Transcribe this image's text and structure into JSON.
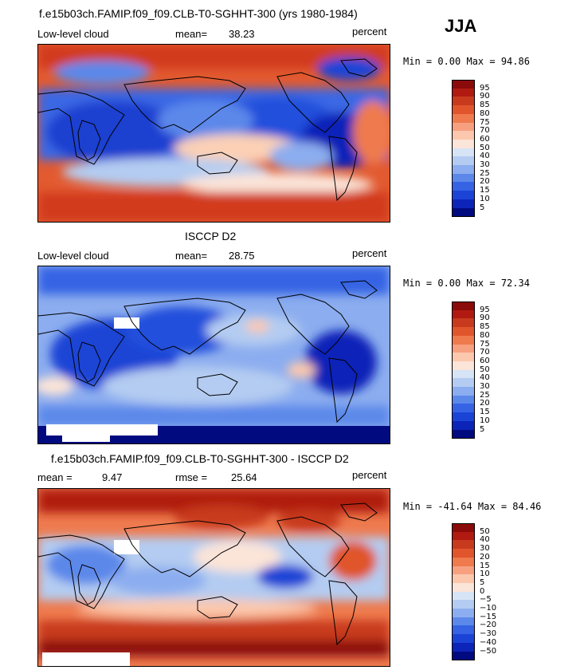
{
  "season": "JJA",
  "panels": [
    {
      "title": "f.e15b03ch.FAMIP.f09_f09.CLB-T0-SGHHT-300 (yrs 1980-1984)",
      "left_label": "Low-level cloud",
      "stat_label": "mean=",
      "stat_value": "38.23",
      "units": "percent",
      "minmax": "Min =    0.00 Max =  94.86",
      "colorbar": {
        "labels": [
          "95",
          "90",
          "85",
          "80",
          "75",
          "70",
          "60",
          "50",
          "40",
          "30",
          "25",
          "20",
          "15",
          "10",
          "5"
        ],
        "colors": [
          "#8b0a0a",
          "#b01a10",
          "#c83a1e",
          "#e0552c",
          "#ee7a4e",
          "#f7a080",
          "#fbc8ad",
          "#fbe4d8",
          "#d6e4f6",
          "#b4ccf1",
          "#8cadef",
          "#5c88ea",
          "#3563e4",
          "#1b44d6",
          "#0d24b8",
          "#020a80"
        ]
      }
    },
    {
      "title": "ISCCP D2",
      "left_label": "Low-level cloud",
      "stat_label": "mean=",
      "stat_value": "28.75",
      "units": "percent",
      "minmax": "Min =    0.00 Max =  72.34",
      "colorbar": {
        "labels": [
          "95",
          "90",
          "85",
          "80",
          "75",
          "70",
          "60",
          "50",
          "40",
          "30",
          "25",
          "20",
          "15",
          "10",
          "5"
        ],
        "colors": [
          "#8b0a0a",
          "#b01a10",
          "#c83a1e",
          "#e0552c",
          "#ee7a4e",
          "#f7a080",
          "#fbc8ad",
          "#fbe4d8",
          "#d6e4f6",
          "#b4ccf1",
          "#8cadef",
          "#5c88ea",
          "#3563e4",
          "#1b44d6",
          "#0d24b8",
          "#020a80"
        ]
      }
    },
    {
      "title": "f.e15b03ch.FAMIP.f09_f09.CLB-T0-SGHHT-300 - ISCCP D2",
      "left_label": "mean =",
      "left_value": "9.47",
      "stat_label": "rmse =",
      "stat_value": "25.64",
      "units": "percent",
      "minmax": "Min = -41.64 Max =  84.46",
      "colorbar": {
        "labels": [
          "50",
          "40",
          "30",
          "20",
          "15",
          "10",
          "5",
          "0",
          "−5",
          "−10",
          "−15",
          "−20",
          "−30",
          "−40",
          "−50"
        ],
        "colors": [
          "#8b0a0a",
          "#b01a10",
          "#c83a1e",
          "#e0552c",
          "#ee7a4e",
          "#f7a080",
          "#fbc8ad",
          "#fbe4d8",
          "#d6e4f6",
          "#b4ccf1",
          "#8cadef",
          "#5c88ea",
          "#3563e4",
          "#1b44d6",
          "#0d24b8",
          "#020a80"
        ]
      }
    }
  ]
}
